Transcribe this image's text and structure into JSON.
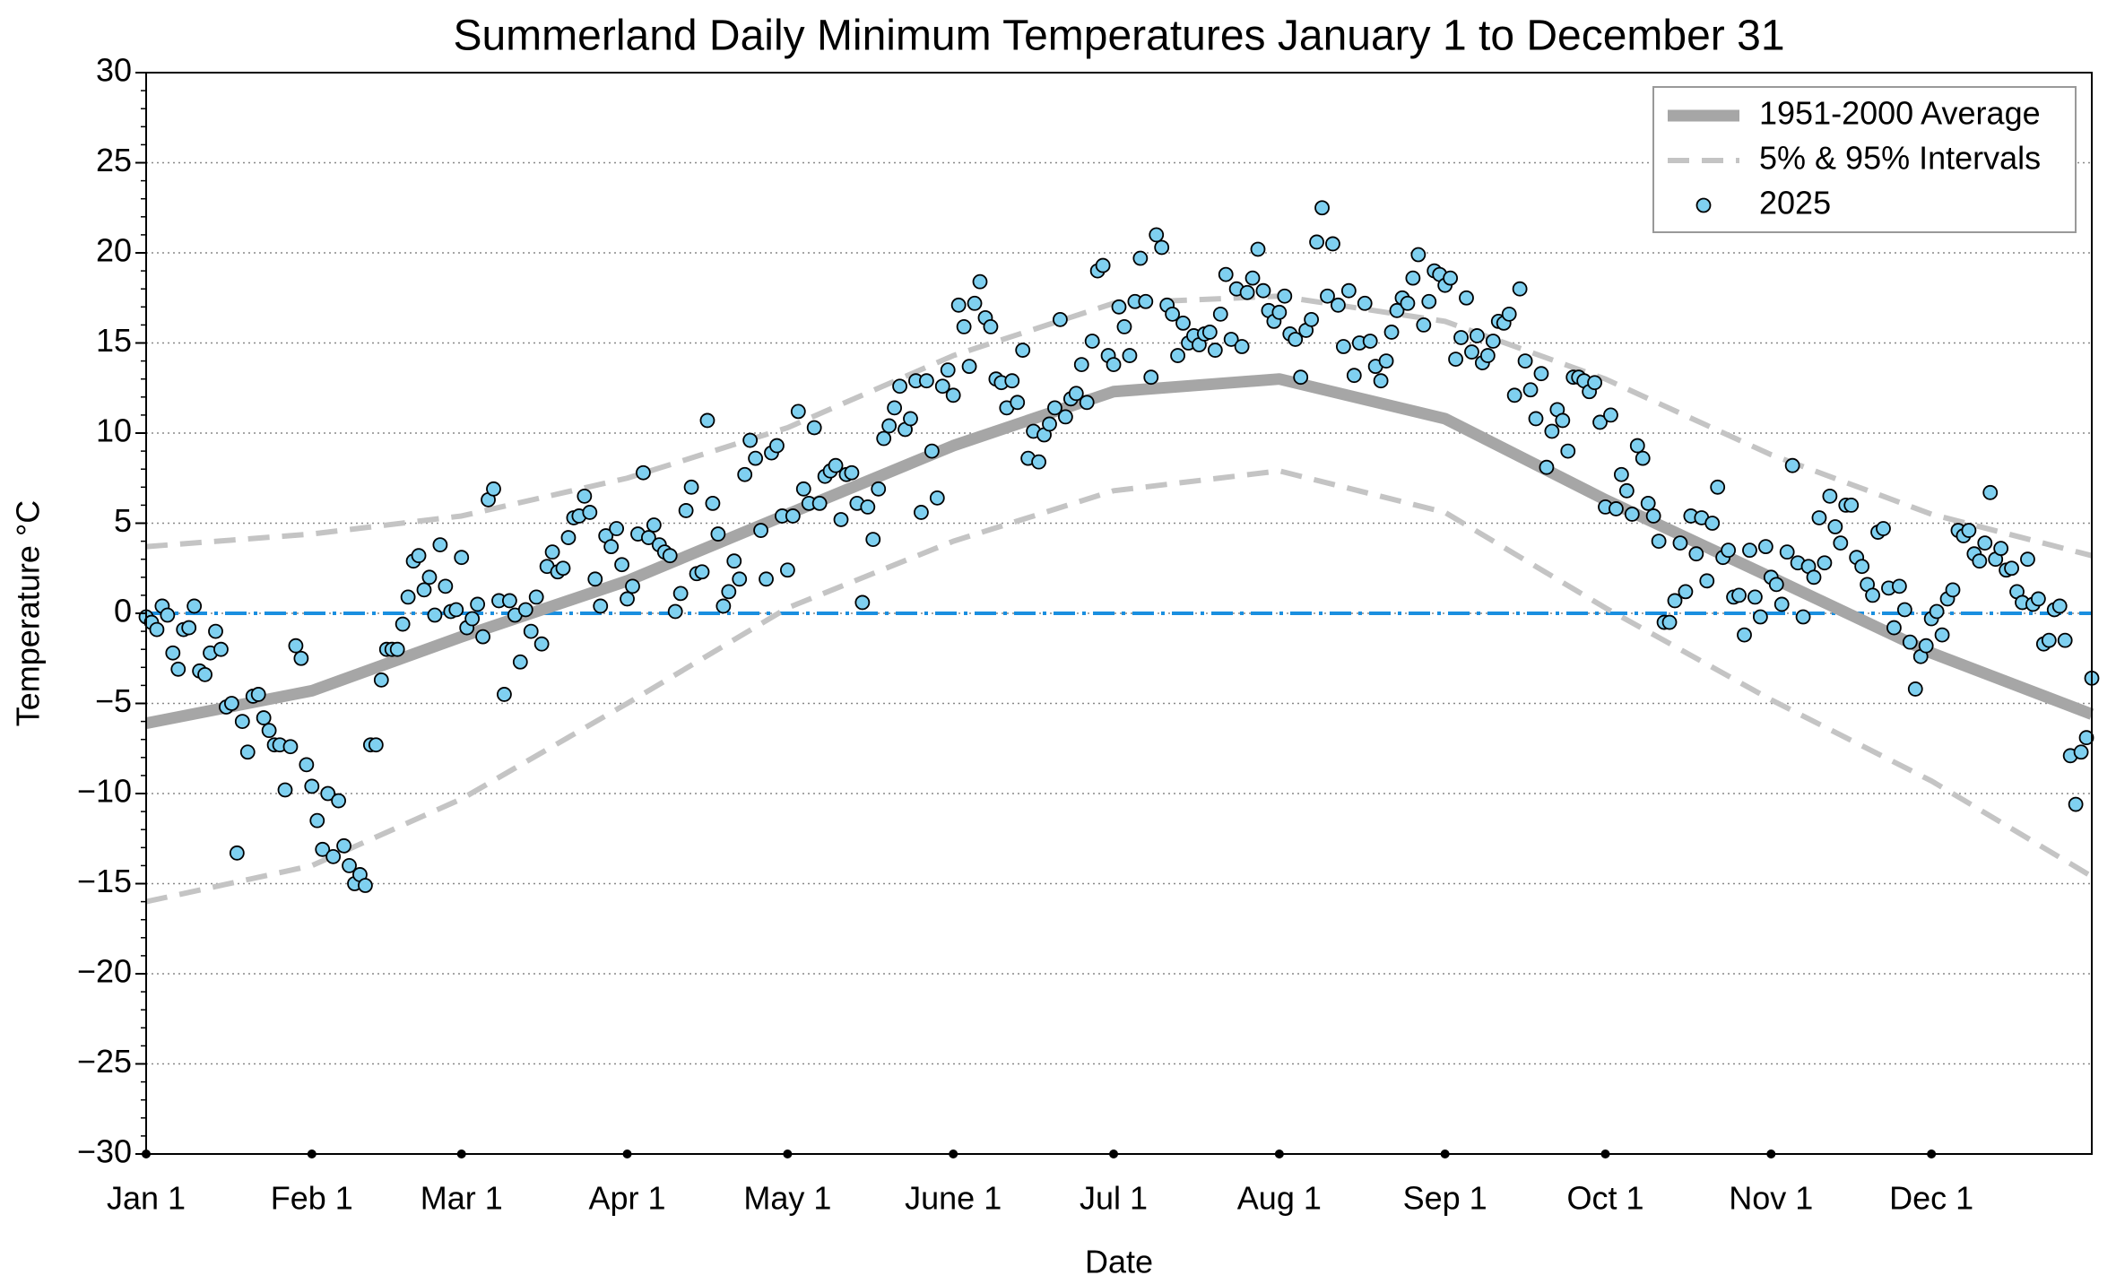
{
  "chart_data": {
    "type": "scatter",
    "title": "Summerland Daily Minimum Temperatures January 1 to December 31",
    "x_label": "Date",
    "y_label": "Temperature °C",
    "xlim": [
      1,
      365
    ],
    "ylim": [
      -30,
      30
    ],
    "xticks": [
      {
        "value": 1,
        "label": "Jan 1"
      },
      {
        "value": 32,
        "label": "Feb 1"
      },
      {
        "value": 60,
        "label": "Mar 1"
      },
      {
        "value": 91,
        "label": "Apr 1"
      },
      {
        "value": 121,
        "label": "May 1"
      },
      {
        "value": 152,
        "label": "June 1"
      },
      {
        "value": 182,
        "label": "Jul 1"
      },
      {
        "value": 213,
        "label": "Aug 1"
      },
      {
        "value": 244,
        "label": "Sep 1"
      },
      {
        "value": 274,
        "label": "Oct 1"
      },
      {
        "value": 305,
        "label": "Nov 1"
      },
      {
        "value": 335,
        "label": "Dec 1"
      }
    ],
    "yticks": [
      30,
      25,
      20,
      15,
      10,
      5,
      0,
      {
        "value": -5,
        "label": "−5"
      },
      {
        "value": -10,
        "label": "−10"
      },
      {
        "value": -15,
        "label": "−15"
      },
      {
        "value": -20,
        "label": "−20"
      },
      {
        "value": -25,
        "label": "−25"
      },
      {
        "value": -30,
        "label": "−30"
      }
    ],
    "y_minor_step": 1,
    "grid": true,
    "legend": "upper right",
    "reference_line": {
      "value": 0,
      "color": "#1a8fe0"
    },
    "series": [
      {
        "name": "1951-2000 Average",
        "style": "solid",
        "color": "#a6a6a6",
        "x": [
          1,
          32,
          60,
          91,
          121,
          152,
          182,
          213,
          244,
          274,
          305,
          335,
          365
        ],
        "values": [
          -6.1,
          -4.3,
          -1.3,
          1.8,
          5.5,
          9.3,
          12.3,
          13.0,
          10.8,
          6.3,
          2.0,
          -2.2,
          -5.6
        ]
      },
      {
        "name": "5% & 95% Intervals",
        "style": "dashed",
        "color": "#c4c4c4",
        "x": [
          1,
          32,
          60,
          91,
          121,
          152,
          182,
          213,
          244,
          274,
          305,
          335,
          365
        ],
        "values": [
          -16.0,
          -14.0,
          -10.3,
          -5.0,
          0.3,
          4.0,
          6.8,
          7.9,
          5.6,
          0.3,
          -4.8,
          -9.3,
          -14.6
        ],
        "upper": [
          3.7,
          4.4,
          5.4,
          7.5,
          10.3,
          14.3,
          17.2,
          17.6,
          16.2,
          13.0,
          8.8,
          5.5,
          3.2
        ]
      },
      {
        "name": "2025",
        "style": "points",
        "color": "#7fd0f0",
        "x": [
          1,
          2,
          3,
          4,
          5,
          6,
          7,
          8,
          9,
          10,
          11,
          12,
          13,
          14,
          15,
          16,
          17,
          18,
          19,
          20,
          21,
          22,
          23,
          24,
          25,
          26,
          27,
          28,
          29,
          30,
          31,
          32,
          33,
          34,
          35,
          36,
          37,
          38,
          39,
          40,
          41,
          42,
          43,
          44,
          45,
          46,
          47,
          48,
          49,
          50,
          51,
          52,
          53,
          54,
          55,
          56,
          57,
          58,
          59,
          60,
          61,
          62,
          63,
          64,
          65,
          66,
          67,
          68,
          69,
          70,
          71,
          72,
          73,
          74,
          75,
          76,
          77,
          78,
          79,
          80,
          81,
          82,
          83,
          84,
          85,
          86,
          87,
          88,
          89,
          90,
          91,
          92,
          93,
          94,
          95,
          96,
          97,
          98,
          99,
          100,
          101,
          102,
          103,
          104,
          105,
          106,
          107,
          108,
          109,
          110,
          111,
          112,
          113,
          114,
          115,
          116,
          117,
          118,
          119,
          120,
          121,
          122,
          123,
          124,
          125,
          126,
          127,
          128,
          129,
          130,
          131,
          132,
          133,
          134,
          135,
          136,
          137,
          138,
          139,
          140,
          141,
          142,
          143,
          144,
          145,
          146,
          147,
          148,
          149,
          150,
          151,
          152,
          153,
          154,
          155,
          156,
          157,
          158,
          159,
          160,
          161,
          162,
          163,
          164,
          165,
          166,
          167,
          168,
          169,
          170,
          171,
          172,
          173,
          174,
          175,
          176,
          177,
          178,
          179,
          180,
          181,
          182,
          183,
          184,
          185,
          186,
          187,
          188,
          189,
          190,
          191,
          192,
          193,
          194,
          195,
          196,
          197,
          198,
          199,
          200,
          201,
          202,
          203,
          204,
          205,
          206,
          207,
          208,
          209,
          210,
          211,
          212,
          213,
          214,
          215,
          216,
          217,
          218,
          219,
          220,
          221,
          222,
          223,
          224,
          225,
          226,
          227,
          228,
          229,
          230,
          231,
          232,
          233,
          234,
          235,
          236,
          237,
          238,
          239,
          240,
          241,
          242,
          243,
          244,
          245,
          246,
          247,
          248,
          249,
          250,
          251,
          252,
          253,
          254,
          255,
          256,
          257,
          258,
          259,
          260,
          261,
          262,
          263,
          264,
          265,
          266,
          267,
          268,
          269,
          270,
          271,
          272,
          273,
          274,
          275,
          276,
          277,
          278,
          279,
          280,
          281,
          282,
          283,
          284,
          285,
          286,
          287,
          288,
          289,
          290,
          291,
          292,
          293,
          294,
          295,
          296,
          297,
          298,
          299,
          300,
          301,
          302,
          303,
          304,
          305,
          306,
          307,
          308,
          309,
          310,
          311,
          312,
          313,
          314,
          315,
          316,
          317,
          318,
          319,
          320,
          321,
          322,
          323,
          324,
          325,
          326,
          327,
          328,
          329,
          330,
          331,
          332,
          333,
          334,
          335,
          336,
          337,
          338,
          339,
          340,
          341,
          342,
          343,
          344,
          345,
          346,
          347,
          348,
          349,
          350,
          351,
          352,
          353,
          354,
          355,
          356,
          357,
          358,
          359,
          360,
          361,
          362,
          363,
          364,
          365
        ],
        "values": [
          -0.2,
          -0.5,
          -0.9,
          0.4,
          -0.1,
          -2.2,
          -3.1,
          -0.9,
          -0.8,
          0.4,
          -3.2,
          -3.4,
          -2.2,
          -1.0,
          -2.0,
          -5.2,
          -5.0,
          -13.3,
          -6.0,
          -7.7,
          -4.6,
          -4.5,
          -5.8,
          -6.5,
          -7.3,
          -7.3,
          -9.8,
          -7.4,
          -1.8,
          -2.5,
          -8.4,
          -9.6,
          -11.5,
          -13.1,
          -10.0,
          -13.5,
          -10.4,
          -12.9,
          -14.0,
          -15.0,
          -14.5,
          -15.1,
          -7.3,
          -7.3,
          -3.7,
          -2.0,
          -2.0,
          -2.0,
          -0.6,
          0.9,
          2.9,
          3.2,
          1.3,
          2.0,
          -0.1,
          3.8,
          1.5,
          0.1,
          0.2,
          3.1,
          -0.8,
          -0.3,
          0.5,
          -1.3,
          6.3,
          6.9,
          0.7,
          -4.5,
          0.7,
          -0.1,
          -2.7,
          0.2,
          -1.0,
          0.9,
          -1.7,
          2.6,
          3.4,
          2.3,
          2.5,
          4.2,
          5.3,
          5.4,
          6.5,
          5.6,
          1.9,
          0.4,
          4.3,
          3.7,
          4.7,
          2.7,
          0.8,
          1.5,
          4.4,
          7.8,
          4.2,
          4.9,
          3.8,
          3.4,
          3.2,
          0.1,
          1.1,
          5.7,
          7.0,
          2.2,
          2.3,
          10.7,
          6.1,
          4.4,
          0.4,
          1.2,
          2.9,
          1.9,
          7.7,
          9.6,
          8.6,
          4.6,
          1.9,
          8.9,
          9.3,
          5.4,
          2.4,
          5.4,
          11.2,
          6.9,
          6.1,
          10.3,
          6.1,
          7.6,
          7.9,
          8.2,
          5.2,
          7.7,
          7.8,
          6.1,
          0.6,
          5.9,
          4.1,
          6.9,
          9.7,
          10.4,
          11.4,
          12.6,
          10.2,
          10.8,
          12.9,
          5.6,
          12.9,
          9.0,
          6.4,
          12.6,
          13.5,
          12.1,
          17.1,
          15.9,
          13.7,
          17.2,
          18.4,
          16.4,
          15.9,
          13.0,
          12.8,
          11.4,
          12.9,
          11.7,
          14.6,
          8.6,
          10.1,
          8.4,
          9.9,
          10.5,
          11.4,
          16.3,
          10.9,
          11.9,
          12.2,
          13.8,
          11.7,
          15.1,
          19.0,
          19.3,
          14.3,
          13.8,
          17.0,
          15.9,
          14.3,
          17.3,
          19.7,
          17.3,
          13.1,
          21.0,
          20.3,
          17.1,
          16.6,
          14.3,
          16.1,
          15.0,
          15.4,
          14.9,
          15.5,
          15.6,
          14.6,
          16.6,
          18.8,
          15.2,
          18.0,
          14.8,
          17.8,
          18.6,
          20.2,
          17.9,
          16.8,
          16.2,
          16.7,
          17.6,
          15.5,
          15.2,
          13.1,
          15.7,
          16.3,
          20.6,
          22.5,
          17.6,
          20.5,
          17.1,
          14.8,
          17.9,
          13.2,
          15.0,
          17.2,
          15.1,
          13.7,
          12.9,
          14.0,
          15.6,
          16.8,
          17.5,
          17.2,
          18.6,
          19.9,
          16.0,
          17.3,
          19.0,
          18.8,
          18.2,
          18.6,
          14.1,
          15.3,
          17.5,
          14.5,
          15.4,
          13.9,
          14.3,
          15.1,
          16.2,
          16.1,
          16.6,
          12.1,
          18.0,
          14.0,
          12.4,
          10.8,
          13.3,
          8.1,
          10.1,
          11.3,
          10.7,
          9.0,
          13.1,
          13.1,
          12.9,
          12.3,
          12.8,
          10.6,
          5.9,
          11.0,
          5.8,
          7.7,
          6.8,
          5.5,
          9.3,
          8.6,
          6.1,
          5.4,
          4.0,
          -0.5,
          -0.5,
          0.7,
          3.9,
          1.2,
          5.4,
          3.3,
          5.3,
          1.8,
          5.0,
          7.0,
          3.1,
          3.5,
          0.9,
          1.0,
          -1.2,
          3.5,
          0.9,
          -0.2,
          3.7,
          2.0,
          1.6,
          0.5,
          3.4,
          8.2,
          2.8,
          -0.2,
          2.6,
          2.0,
          5.3,
          2.8,
          6.5,
          4.8,
          3.9,
          6.0,
          6.0,
          3.1,
          2.6,
          1.6,
          1.0,
          4.5,
          4.7,
          1.4,
          -0.8,
          1.5,
          0.2,
          -1.6,
          -4.2,
          -2.4,
          -1.8,
          -0.3,
          0.1,
          -1.2,
          0.8,
          1.3,
          4.6,
          4.3,
          4.6,
          3.3,
          2.9,
          3.9,
          6.7,
          3.0,
          3.6,
          2.4,
          2.5,
          1.2,
          0.6,
          3.0,
          0.5,
          0.8,
          -1.7,
          -1.5,
          0.2,
          0.4,
          -1.5,
          -7.9,
          -10.6,
          -7.7,
          -6.9,
          -3.6
        ]
      }
    ]
  }
}
